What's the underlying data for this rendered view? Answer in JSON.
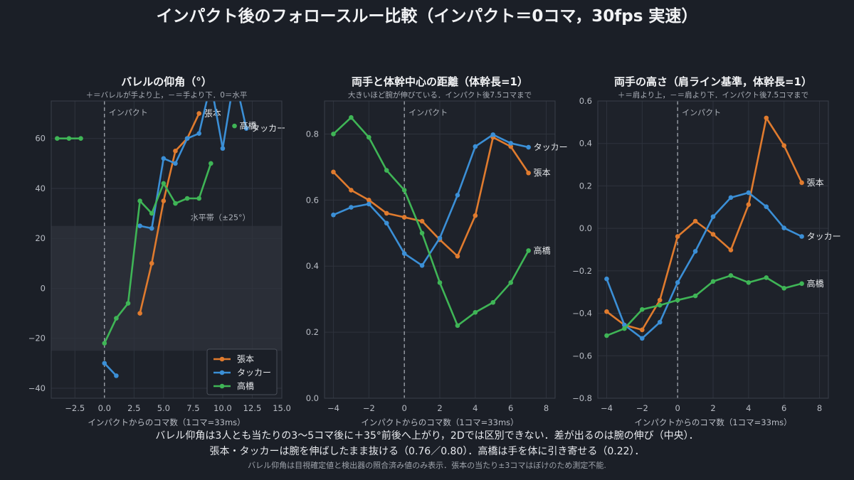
{
  "title": "インパクト後のフォロースルー比較（インパクト＝0コマ，30fps 実速）",
  "footer": {
    "line1": "バレル仰角は3人とも当たりの3〜5コマ後に＋35°前後へ上がり，2Dでは区別できない．差が出るのは腕の伸び（中央）．",
    "line2": "張本・タッカーは腕を伸ばしたまま抜ける（0.76／0.80）．高橋は手を体に引き寄せる（0.22）．",
    "note": "バレル仰角は目視確定値と検出器の照合済み値のみ表示．張本の当たり±3コマはぼけのため測定不能."
  },
  "colors": {
    "background": "#1b1f27",
    "plot_background": "#1e222a",
    "grid": "#2e333d",
    "band": "#2a2e37",
    "harimoto": "#e07b2e",
    "tucker": "#3b8fd6",
    "takahashi": "#3fb556"
  },
  "chart_data": [
    {
      "type": "line",
      "title": "バレルの仰角（°）",
      "subtitle": "＋＝バレルが手より上，－＝手より下．0＝水平",
      "xlabel": "インパクトからのコマ数（1コマ=33ms）",
      "ylabel": "",
      "xlim": [
        -4.5,
        15
      ],
      "ylim": [
        -44,
        75
      ],
      "xticks": [
        -2.5,
        0,
        2.5,
        5,
        7.5,
        10,
        12.5,
        15
      ],
      "xtick_labels": [
        "−2.5",
        "0.0",
        "2.5",
        "5.0",
        "7.5",
        "10.0",
        "12.5",
        "15.0"
      ],
      "yticks": [
        -40,
        -20,
        0,
        20,
        40,
        60
      ],
      "ytick_labels": [
        "−40",
        "−20",
        "0",
        "20",
        "40",
        "60"
      ],
      "grid": true,
      "impact_label": "インパクト",
      "band": {
        "y": [
          -25,
          25
        ],
        "label": "水平帯（±25°）"
      },
      "legend": {
        "position": "lower-right",
        "entries": [
          "張本",
          "タッカー",
          "高橋"
        ]
      },
      "series": [
        {
          "name": "張本",
          "color": "#e07b2e",
          "segments": [
            [
              [
                3,
                -10
              ],
              [
                4,
                10
              ],
              [
                5,
                35
              ],
              [
                6,
                55
              ],
              [
                7,
                60
              ],
              [
                8,
                70
              ]
            ]
          ],
          "end_label": {
            "text": "張本",
            "x": 8,
            "y": 70
          }
        },
        {
          "name": "タッカー",
          "color": "#3b8fd6",
          "segments": [
            [
              [
                0,
                -30
              ],
              [
                1,
                -35
              ]
            ],
            [
              [
                3,
                25
              ],
              [
                4,
                24
              ],
              [
                5,
                52
              ],
              [
                6,
                50
              ],
              [
                7,
                60
              ],
              [
                8,
                62
              ],
              [
                9,
                82
              ],
              [
                10,
                56
              ],
              [
                11,
                85
              ],
              [
                12,
                64
              ]
            ]
          ],
          "end_label": {
            "text": "タッカー",
            "x": 12,
            "y": 64
          }
        },
        {
          "name": "高橋",
          "color": "#3fb556",
          "segments": [
            [
              [
                -4,
                60
              ],
              [
                -3,
                60
              ],
              [
                -2,
                60
              ]
            ],
            [
              [
                0,
                -22
              ],
              [
                1,
                -12
              ],
              [
                2,
                -6
              ],
              [
                3,
                35
              ],
              [
                4,
                30
              ],
              [
                5,
                42
              ],
              [
                6,
                34
              ],
              [
                7,
                36
              ],
              [
                8,
                36
              ],
              [
                9,
                50
              ]
            ],
            [
              [
                11,
                65
              ]
            ]
          ],
          "end_label": {
            "text": "高橋",
            "x": 11,
            "y": 65
          }
        }
      ]
    },
    {
      "type": "line",
      "title": "両手と体幹中心の距離（体幹長=1）",
      "subtitle": "大きいほど腕が伸びている．インパクト後7.5コマまで",
      "xlabel": "インパクトからのコマ数（1コマ=33ms）",
      "ylabel": "",
      "xlim": [
        -4.5,
        8.5
      ],
      "ylim": [
        0,
        0.9
      ],
      "xticks": [
        -4,
        -2,
        0,
        2,
        4,
        6,
        8
      ],
      "xtick_labels": [
        "−4",
        "−2",
        "0",
        "2",
        "4",
        "6",
        "8"
      ],
      "yticks": [
        0,
        0.2,
        0.4,
        0.6,
        0.8
      ],
      "ytick_labels": [
        "0.0",
        "0.2",
        "0.4",
        "0.6",
        "0.8"
      ],
      "grid": true,
      "impact_label": "インパクト",
      "series": [
        {
          "name": "張本",
          "color": "#e07b2e",
          "segments": [
            [
              [
                -4,
                0.685
              ],
              [
                -3,
                0.63
              ],
              [
                -2,
                0.6
              ],
              [
                -1,
                0.56
              ],
              [
                0,
                0.548
              ],
              [
                1,
                0.536
              ],
              [
                2,
                0.48
              ],
              [
                3,
                0.43
              ],
              [
                4,
                0.553
              ],
              [
                5,
                0.79
              ],
              [
                6,
                0.762
              ],
              [
                7,
                0.682
              ]
            ]
          ],
          "end_label": {
            "text": "張本",
            "x": 7,
            "y": 0.682
          }
        },
        {
          "name": "タッカー",
          "color": "#3b8fd6",
          "segments": [
            [
              [
                -4,
                0.555
              ],
              [
                -3,
                0.578
              ],
              [
                -2,
                0.588
              ],
              [
                -1,
                0.53
              ],
              [
                0,
                0.438
              ],
              [
                1,
                0.402
              ],
              [
                2,
                0.485
              ],
              [
                3,
                0.615
              ],
              [
                4,
                0.762
              ],
              [
                5,
                0.798
              ],
              [
                6,
                0.772
              ],
              [
                7,
                0.76
              ]
            ]
          ],
          "end_label": {
            "text": "タッカー",
            "x": 7,
            "y": 0.76
          }
        },
        {
          "name": "高橋",
          "color": "#3fb556",
          "segments": [
            [
              [
                -4,
                0.8
              ],
              [
                -3,
                0.85
              ],
              [
                -2,
                0.79
              ],
              [
                -1,
                0.69
              ],
              [
                0,
                0.63
              ],
              [
                1,
                0.5
              ],
              [
                2,
                0.35
              ],
              [
                3,
                0.22
              ],
              [
                4,
                0.26
              ],
              [
                5,
                0.29
              ],
              [
                6,
                0.35
              ],
              [
                7,
                0.447
              ]
            ]
          ],
          "end_label": {
            "text": "高橋",
            "x": 7,
            "y": 0.447
          }
        }
      ]
    },
    {
      "type": "line",
      "title": "両手の高さ（肩ライン基準，体幹長=1）",
      "subtitle": "＋＝肩より上，－＝肩より下．インパクト後7.5コマまで",
      "xlabel": "インパクトからのコマ数（1コマ=33ms）",
      "ylabel": "",
      "xlim": [
        -4.5,
        8.5
      ],
      "ylim": [
        -0.8,
        0.6
      ],
      "xticks": [
        -4,
        -2,
        0,
        2,
        4,
        6,
        8
      ],
      "xtick_labels": [
        "−4",
        "−2",
        "0",
        "2",
        "4",
        "6",
        "8"
      ],
      "yticks": [
        -0.8,
        -0.6,
        -0.4,
        -0.2,
        0,
        0.2,
        0.4,
        0.6
      ],
      "ytick_labels": [
        "−0.8",
        "−0.6",
        "−0.4",
        "−0.2",
        "0.0",
        "0.2",
        "0.4",
        "0.6"
      ],
      "grid": true,
      "impact_label": "インパクト",
      "series": [
        {
          "name": "張本",
          "color": "#e07b2e",
          "segments": [
            [
              [
                -4,
                -0.392
              ],
              [
                -3,
                -0.455
              ],
              [
                -2,
                -0.478
              ],
              [
                -1,
                -0.338
              ],
              [
                0,
                -0.038
              ],
              [
                1,
                0.034
              ],
              [
                2,
                -0.028
              ],
              [
                3,
                -0.102
              ],
              [
                4,
                0.112
              ],
              [
                5,
                0.52
              ],
              [
                6,
                0.39
              ],
              [
                7,
                0.215
              ]
            ]
          ],
          "end_label": {
            "text": "張本",
            "x": 7,
            "y": 0.215
          }
        },
        {
          "name": "タッカー",
          "color": "#3b8fd6",
          "segments": [
            [
              [
                -4,
                -0.238
              ],
              [
                -3,
                -0.455
              ],
              [
                -2,
                -0.518
              ],
              [
                -1,
                -0.442
              ],
              [
                0,
                -0.255
              ],
              [
                1,
                -0.108
              ],
              [
                2,
                0.055
              ],
              [
                3,
                0.145
              ],
              [
                4,
                0.168
              ],
              [
                5,
                0.102
              ],
              [
                6,
                0.002
              ],
              [
                7,
                -0.038
              ]
            ]
          ],
          "end_label": {
            "text": "タッカー",
            "x": 7,
            "y": -0.038
          }
        },
        {
          "name": "高橋",
          "color": "#3fb556",
          "segments": [
            [
              [
                -4,
                -0.505
              ],
              [
                -3,
                -0.472
              ],
              [
                -2,
                -0.382
              ],
              [
                -1,
                -0.362
              ],
              [
                0,
                -0.338
              ],
              [
                1,
                -0.318
              ],
              [
                2,
                -0.25
              ],
              [
                3,
                -0.222
              ],
              [
                4,
                -0.255
              ],
              [
                5,
                -0.232
              ],
              [
                6,
                -0.282
              ],
              [
                7,
                -0.26
              ]
            ]
          ],
          "end_label": {
            "text": "高橋",
            "x": 7,
            "y": -0.26
          }
        }
      ]
    }
  ]
}
